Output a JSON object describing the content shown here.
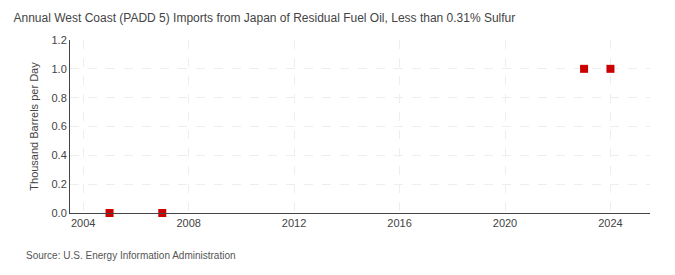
{
  "chart_data": {
    "type": "scatter",
    "title": "Annual West Coast (PADD 5) Imports from Japan of Residual Fuel Oil, Less than 0.31% Sulfur",
    "ylabel": "Thousand Barrels per Day",
    "annotation": "Source: U.S. Energy Information Administration",
    "x": [
      2005,
      2007,
      2023,
      2024
    ],
    "values": [
      0.0,
      0.0,
      1.0,
      1.0
    ],
    "color": "#cc0000",
    "marker": "square",
    "xlim": [
      2003.5,
      2025.5
    ],
    "ylim": [
      0.0,
      1.2
    ],
    "xticks": [
      2004,
      2008,
      2012,
      2016,
      2020,
      2024
    ],
    "yticks": [
      {
        "value": 0.0,
        "label": "0.0"
      },
      0.2,
      0.4,
      0.6,
      0.8,
      {
        "value": 1.0,
        "label": "1.0"
      },
      1.2
    ],
    "grid": true
  }
}
